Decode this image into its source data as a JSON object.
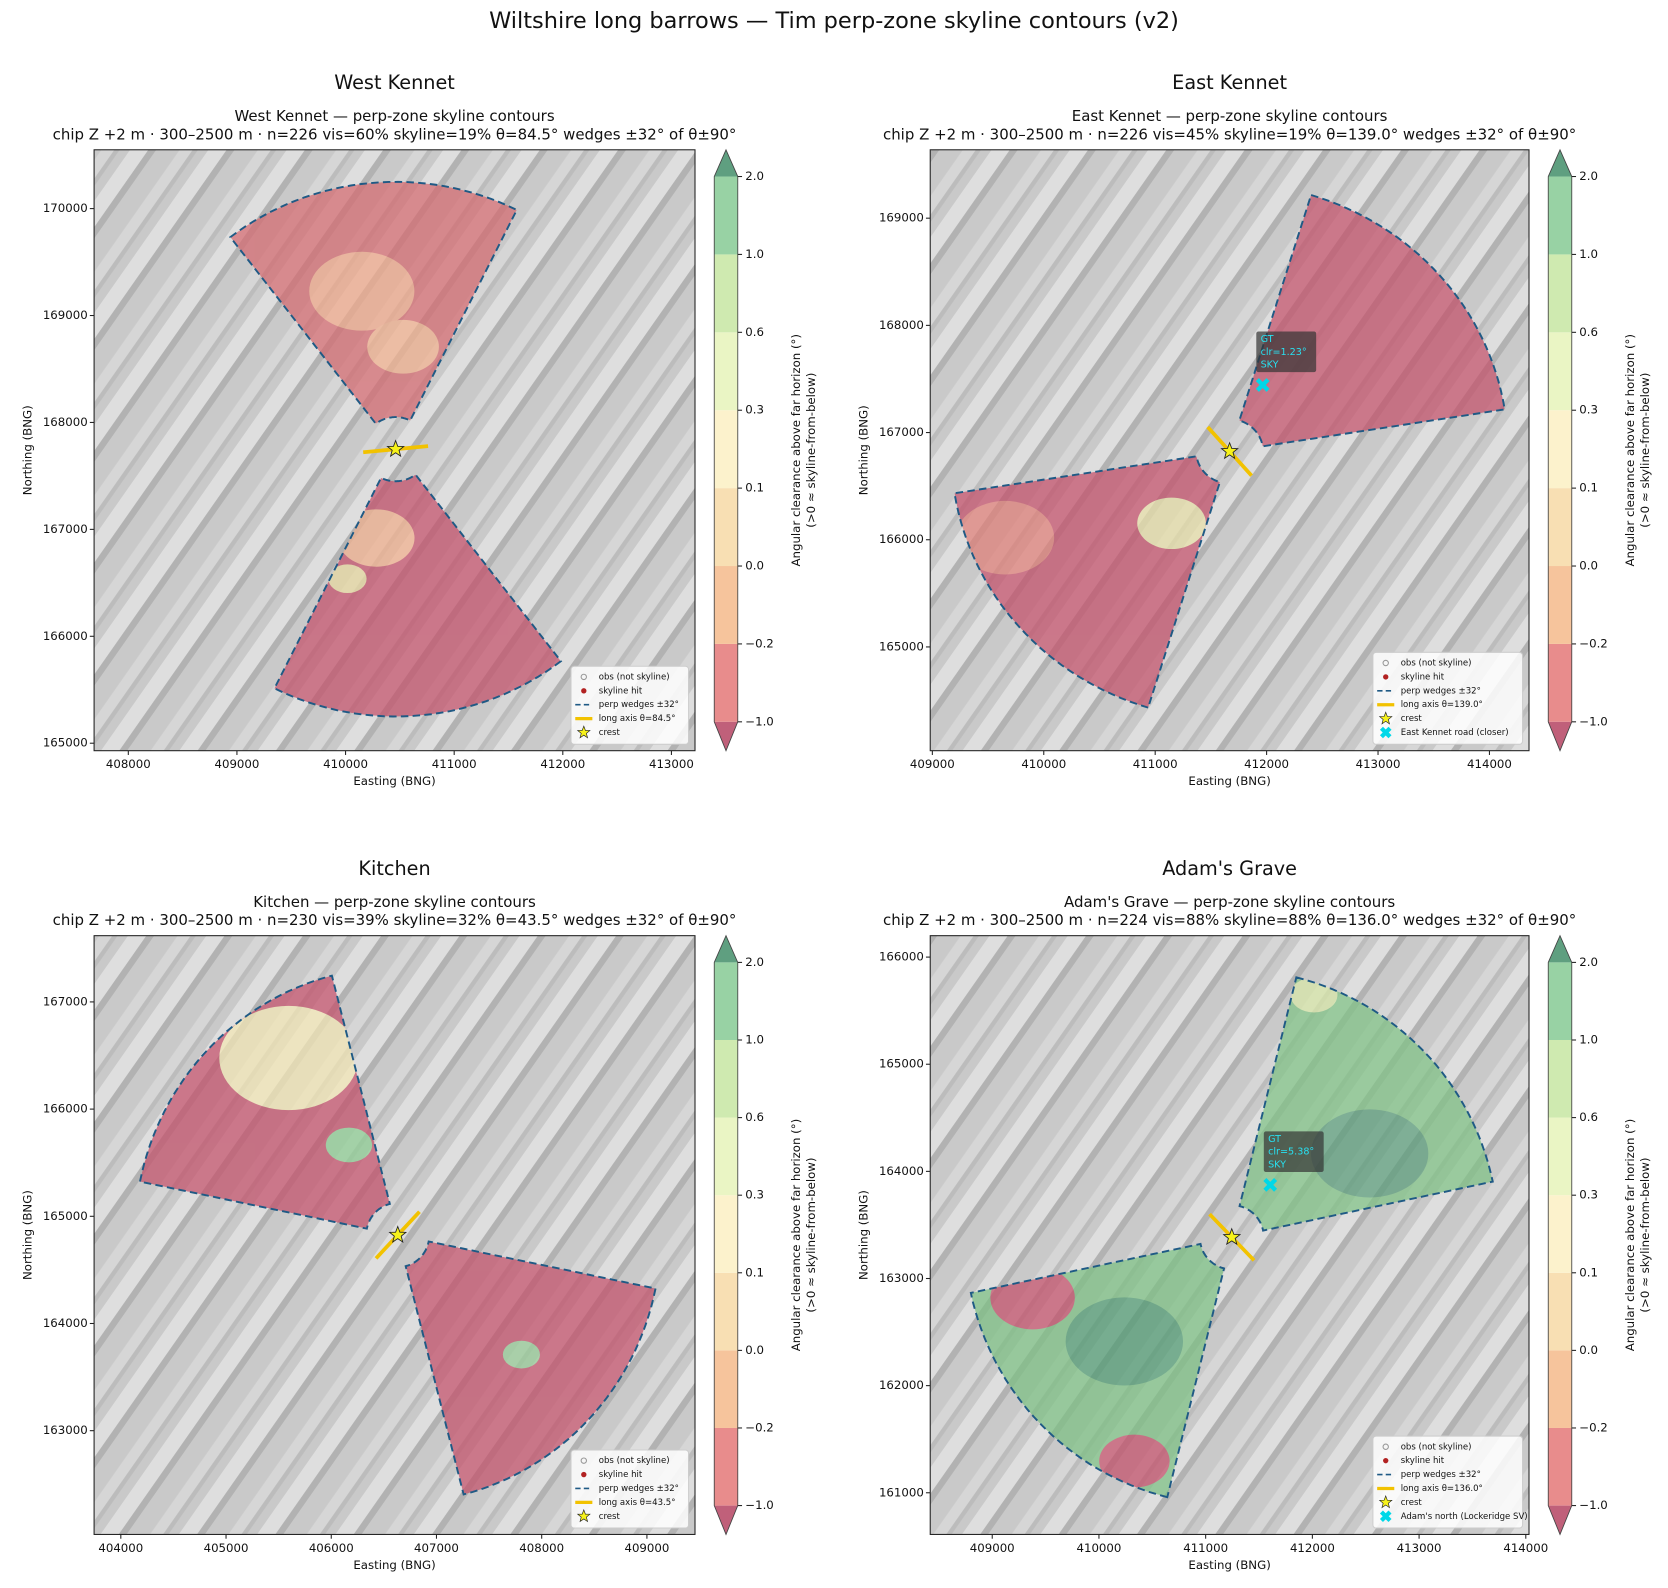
{
  "title": "Wiltshire long barrows — Tim perp-zone skyline contours (v2)",
  "chart_data": [
    {
      "type": "contourmap",
      "title": "West Kennet",
      "subtitle": [
        "West Kennet — perp-zone skyline contours",
        "chip Z +2 m · 300–2500 m · n=226  vis=60%  skyline=19%  θ=84.5°  wedges ±32° of θ±90°"
      ],
      "xlabel": "Easting (BNG)",
      "ylabel": "Northing (BNG)",
      "xlim": [
        407685,
        413217
      ],
      "xticks": [
        408000,
        409000,
        410000,
        411000,
        412000,
        413000
      ],
      "ylim": [
        164930,
        170550
      ],
      "yticks": [
        165000,
        166000,
        167000,
        168000,
        169000,
        170000
      ],
      "theta": 84.5,
      "wedge_half_angle": 32,
      "range_m": [
        300,
        2500
      ],
      "crest": [
        410461,
        167750
      ],
      "legend": [
        "obs (not skyline)",
        "skyline hit",
        "perp wedges ±32°",
        "long axis θ=84.5°",
        "crest"
      ],
      "legend_loc": "lower right",
      "colorbar_label": [
        "Angular clearance above far horizon (°)",
        "(>0 ≈ skyline-from-below)"
      ],
      "colorbar_ticks": [
        {
          "value": -1.0,
          "label": "−1.0"
        },
        {
          "value": -0.2,
          "label": "−0.2"
        },
        {
          "value": 0.0,
          "label": "0.0"
        },
        {
          "value": 0.1,
          "label": "0.1"
        },
        {
          "value": 0.3,
          "label": "0.3"
        },
        {
          "value": 0.6,
          "label": "0.6"
        },
        {
          "value": 1.0,
          "label": "1.0"
        },
        {
          "value": 2.0,
          "label": "2.0"
        }
      ],
      "colorbar_colors": [
        "#e88c8c",
        "#f6c49c",
        "#f8dfb3",
        "#fcf2cc",
        "#eaf5c4",
        "#cfeab0",
        "#98d2a4"
      ]
    },
    {
      "type": "contourmap",
      "title": "East Kennet",
      "subtitle": [
        "East Kennet — perp-zone skyline contours",
        "chip Z +2 m · 300–2500 m · n=226  vis=45%  skyline=19%  θ=139.0°  wedges ±32° of θ±90°"
      ],
      "xlabel": "Easting (BNG)",
      "ylabel": "Northing (BNG)",
      "xlim": [
        408981,
        414355
      ],
      "xticks": [
        409000,
        410000,
        411000,
        412000,
        413000,
        414000
      ],
      "ylim": [
        164032,
        169638
      ],
      "yticks": [
        165000,
        166000,
        167000,
        168000,
        169000
      ],
      "theta": 139.0,
      "wedge_half_angle": 32,
      "range_m": [
        300,
        2500
      ],
      "crest": [
        411668,
        166825
      ],
      "gt": {
        "x": 411965,
        "y": 167444,
        "annotation": [
          "GT",
          "clr=1.23°",
          "SKY"
        ]
      },
      "legend": [
        "obs (not skyline)",
        "skyline hit",
        "perp wedges ±32°",
        "long axis θ=139.0°",
        "crest",
        "East Kennet road (closer)"
      ],
      "legend_loc": "lower right",
      "colorbar_label": [
        "Angular clearance above far horizon (°)",
        "(>0 ≈ skyline-from-below)"
      ],
      "colorbar_ticks": [
        {
          "value": -1.0,
          "label": "−1.0"
        },
        {
          "value": -0.2,
          "label": "−0.2"
        },
        {
          "value": 0.0,
          "label": "0.0"
        },
        {
          "value": 0.1,
          "label": "0.1"
        },
        {
          "value": 0.3,
          "label": "0.3"
        },
        {
          "value": 0.6,
          "label": "0.6"
        },
        {
          "value": 1.0,
          "label": "1.0"
        },
        {
          "value": 2.0,
          "label": "2.0"
        }
      ],
      "colorbar_colors": [
        "#e88c8c",
        "#f6c49c",
        "#f8dfb3",
        "#fcf2cc",
        "#eaf5c4",
        "#cfeab0",
        "#98d2a4"
      ]
    },
    {
      "type": "contourmap",
      "title": "Kitchen",
      "subtitle": [
        "Kitchen — perp-zone skyline contours",
        "chip Z +2 m · 300–2500 m · n=230  vis=39%  skyline=32%  θ=43.5°  wedges ±32° of θ±90°"
      ],
      "xlabel": "Easting (BNG)",
      "ylabel": "Northing (BNG)",
      "xlim": [
        403746,
        409457
      ],
      "xticks": [
        404000,
        405000,
        406000,
        407000,
        408000,
        409000
      ],
      "ylim": [
        162032,
        167618
      ],
      "yticks": [
        163000,
        164000,
        165000,
        166000,
        167000
      ],
      "theta": 43.5,
      "wedge_half_angle": 32,
      "range_m": [
        300,
        2500
      ],
      "crest": [
        406632,
        164825
      ],
      "legend": [
        "obs (not skyline)",
        "skyline hit",
        "perp wedges ±32°",
        "long axis θ=43.5°",
        "crest"
      ],
      "legend_loc": "lower right",
      "colorbar_label": [
        "Angular clearance above far horizon (°)",
        "(>0 ≈ skyline-from-below)"
      ],
      "colorbar_ticks": [
        {
          "value": -1.0,
          "label": "−1.0"
        },
        {
          "value": -0.2,
          "label": "−0.2"
        },
        {
          "value": 0.0,
          "label": "0.0"
        },
        {
          "value": 0.1,
          "label": "0.1"
        },
        {
          "value": 0.3,
          "label": "0.3"
        },
        {
          "value": 0.6,
          "label": "0.6"
        },
        {
          "value": 1.0,
          "label": "1.0"
        },
        {
          "value": 2.0,
          "label": "2.0"
        }
      ],
      "colorbar_colors": [
        "#e88c8c",
        "#f6c49c",
        "#f8dfb3",
        "#fcf2cc",
        "#eaf5c4",
        "#cfeab0",
        "#98d2a4"
      ]
    },
    {
      "type": "contourmap",
      "title": "Adam's Grave",
      "subtitle": [
        "Adam's Grave — perp-zone skyline contours",
        "chip Z +2 m · 300–2500 m · n=224  vis=88%  skyline=88%  θ=136.0°  wedges ±32° of θ±90°"
      ],
      "xlabel": "Easting (BNG)",
      "ylabel": "Northing (BNG)",
      "xlim": [
        408419,
        414030
      ],
      "xticks": [
        409000,
        410000,
        411000,
        412000,
        413000,
        414000
      ],
      "ylim": [
        160611,
        166200
      ],
      "yticks": [
        161000,
        162000,
        163000,
        164000,
        165000,
        166000
      ],
      "theta": 136.0,
      "wedge_half_angle": 32,
      "range_m": [
        300,
        2500
      ],
      "crest": [
        411245,
        163385
      ],
      "gt": {
        "x": 411605,
        "y": 163874,
        "annotation": [
          "GT",
          "clr=5.38°",
          "SKY"
        ]
      },
      "legend": [
        "obs (not skyline)",
        "skyline hit",
        "perp wedges ±32°",
        "long axis θ=136.0°",
        "crest",
        "Adam's north (Lockeridge SV)"
      ],
      "legend_loc": "lower right",
      "colorbar_label": [
        "Angular clearance above far horizon (°)",
        "(>0 ≈ skyline-from-below)"
      ],
      "colorbar_ticks": [
        {
          "value": -1.0,
          "label": "−1.0"
        },
        {
          "value": -0.2,
          "label": "−0.2"
        },
        {
          "value": 0.0,
          "label": "0.0"
        },
        {
          "value": 0.1,
          "label": "0.1"
        },
        {
          "value": 0.3,
          "label": "0.3"
        },
        {
          "value": 0.6,
          "label": "0.6"
        },
        {
          "value": 1.0,
          "label": "1.0"
        },
        {
          "value": 2.0,
          "label": "2.0"
        }
      ],
      "colorbar_colors": [
        "#e88c8c",
        "#f6c49c",
        "#f8dfb3",
        "#fcf2cc",
        "#eaf5c4",
        "#cfeab0",
        "#98d2a4"
      ]
    }
  ]
}
